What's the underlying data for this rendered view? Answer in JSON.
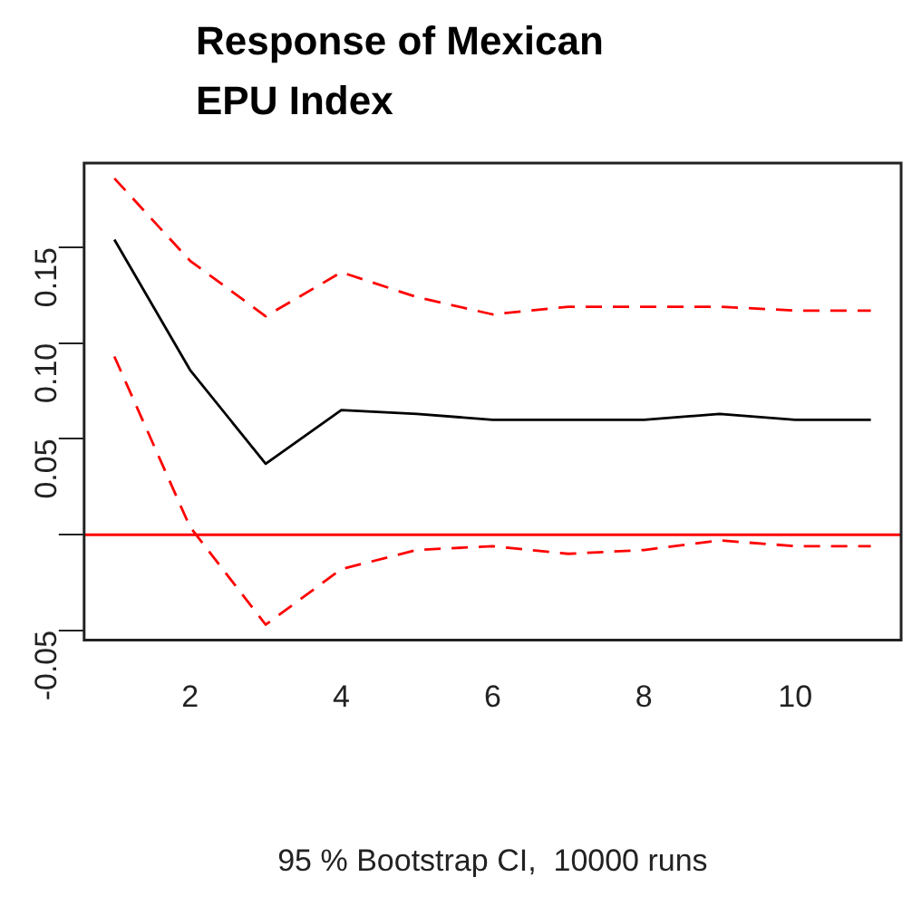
{
  "chart_data": {
    "type": "line",
    "title": "Response of Mexican EPU Index",
    "xlabel": "95 % Bootstrap CI,  10000 runs",
    "x": [
      1,
      2,
      3,
      4,
      5,
      6,
      7,
      8,
      9,
      10,
      11
    ],
    "series": [
      {
        "color": "#000000",
        "line_style": "solid",
        "values": [
          0.154,
          0.086,
          0.037,
          0.065,
          0.063,
          0.06,
          0.06,
          0.06,
          0.063,
          0.06,
          0.06
        ]
      },
      {
        "color": "#ff0000",
        "line_style": "dashed",
        "values": [
          0.186,
          0.143,
          0.114,
          0.137,
          0.124,
          0.115,
          0.119,
          0.119,
          0.119,
          0.117,
          0.117
        ]
      },
      {
        "color": "#ff0000",
        "line_style": "dashed",
        "values": [
          0.093,
          0.004,
          -0.047,
          -0.018,
          -0.008,
          -0.006,
          -0.01,
          -0.008,
          -0.003,
          -0.006,
          -0.006
        ]
      }
    ],
    "xlim": [
      0.6,
      11.4
    ],
    "xticks": [
      2,
      4,
      6,
      8,
      10
    ],
    "ylim": [
      -0.055,
      0.194
    ],
    "yticks": [
      {
        "value": -0.05,
        "label": "-0.05"
      },
      {
        "value": 0,
        "label": null
      },
      {
        "value": 0.05,
        "label": "0.05"
      },
      {
        "value": 0.1,
        "label": "0.10"
      },
      {
        "value": 0.15,
        "label": "0.15"
      }
    ],
    "ref_lines": [
      {
        "axis": "y",
        "value": 0,
        "color": "#ff0000",
        "line_style": "solid"
      }
    ],
    "grid": false,
    "legend": false,
    "marker": "none"
  }
}
